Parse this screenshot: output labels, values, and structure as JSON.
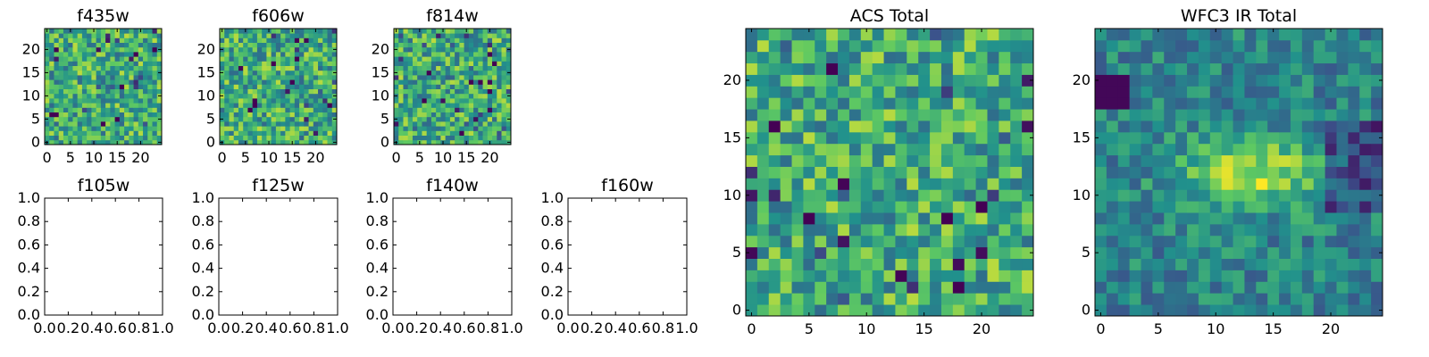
{
  "chart_data": [
    {
      "type": "heatmap",
      "title": "f435w",
      "xlim": [
        -0.5,
        24.5
      ],
      "ylim": [
        -0.5,
        24.5
      ],
      "xticks": [
        0,
        5,
        10,
        15,
        20
      ],
      "yticks": [
        0,
        5,
        10,
        15,
        20
      ],
      "grid_size": [
        25,
        25
      ],
      "colormap": "viridis",
      "value_range": [
        0,
        1
      ],
      "seed": 1
    },
    {
      "type": "heatmap",
      "title": "f606w",
      "xlim": [
        -0.5,
        24.5
      ],
      "ylim": [
        -0.5,
        24.5
      ],
      "xticks": [
        0,
        5,
        10,
        15,
        20
      ],
      "yticks": [
        0,
        5,
        10,
        15,
        20
      ],
      "grid_size": [
        25,
        25
      ],
      "colormap": "viridis",
      "value_range": [
        0,
        1
      ],
      "seed": 2
    },
    {
      "type": "heatmap",
      "title": "f814w",
      "xlim": [
        -0.5,
        24.5
      ],
      "ylim": [
        -0.5,
        24.5
      ],
      "xticks": [
        0,
        5,
        10,
        15,
        20
      ],
      "yticks": [
        0,
        5,
        10,
        15,
        20
      ],
      "grid_size": [
        25,
        25
      ],
      "colormap": "viridis",
      "value_range": [
        0,
        1
      ],
      "seed": 3
    },
    {
      "type": "scatter",
      "title": "f105w",
      "xlim": [
        0,
        1
      ],
      "ylim": [
        0,
        1
      ],
      "xticks": [
        "0.0",
        "0.2",
        "0.4",
        "0.6",
        "0.8",
        "1.0"
      ],
      "yticks": [
        "0.0",
        "0.2",
        "0.4",
        "0.6",
        "0.8",
        "1.0"
      ],
      "series": []
    },
    {
      "type": "scatter",
      "title": "f125w",
      "xlim": [
        0,
        1
      ],
      "ylim": [
        0,
        1
      ],
      "xticks": [
        "0.0",
        "0.2",
        "0.4",
        "0.6",
        "0.8",
        "1.0"
      ],
      "yticks": [
        "0.0",
        "0.2",
        "0.4",
        "0.6",
        "0.8",
        "1.0"
      ],
      "series": []
    },
    {
      "type": "scatter",
      "title": "f140w",
      "xlim": [
        0,
        1
      ],
      "ylim": [
        0,
        1
      ],
      "xticks": [
        "0.0",
        "0.2",
        "0.4",
        "0.6",
        "0.8",
        "1.0"
      ],
      "yticks": [
        "0.0",
        "0.2",
        "0.4",
        "0.6",
        "0.8",
        "1.0"
      ],
      "series": []
    },
    {
      "type": "scatter",
      "title": "f160w",
      "xlim": [
        0,
        1
      ],
      "ylim": [
        0,
        1
      ],
      "xticks": [
        "0.0",
        "0.2",
        "0.4",
        "0.6",
        "0.8",
        "1.0"
      ],
      "yticks": [
        "0.0",
        "0.2",
        "0.4",
        "0.6",
        "0.8",
        "1.0"
      ],
      "series": []
    },
    {
      "type": "heatmap",
      "title": "ACS Total",
      "xlim": [
        -0.5,
        24.5
      ],
      "ylim": [
        -0.5,
        24.5
      ],
      "xticks": [
        0,
        5,
        10,
        15,
        20
      ],
      "yticks": [
        0,
        5,
        10,
        15,
        20
      ],
      "grid_size": [
        25,
        25
      ],
      "colormap": "viridis",
      "value_range": [
        0,
        1
      ],
      "seed": 4
    },
    {
      "type": "heatmap",
      "title": "WFC3 IR Total",
      "xlim": [
        -0.5,
        24.5
      ],
      "ylim": [
        -0.5,
        24.5
      ],
      "xticks": [
        0,
        5,
        10,
        15,
        20
      ],
      "yticks": [
        0,
        5,
        10,
        15,
        20
      ],
      "grid_size": [
        25,
        25
      ],
      "colormap": "viridis",
      "value_range": [
        0,
        1
      ],
      "seed": 5,
      "structure": "band-near-y12-dark-patch-near-y19-x0-2"
    }
  ],
  "colors": {
    "frame": "#000000",
    "background": "#ffffff",
    "viridis_stops": [
      "#440154",
      "#3b528b",
      "#21918c",
      "#5ec962",
      "#fde725"
    ]
  }
}
